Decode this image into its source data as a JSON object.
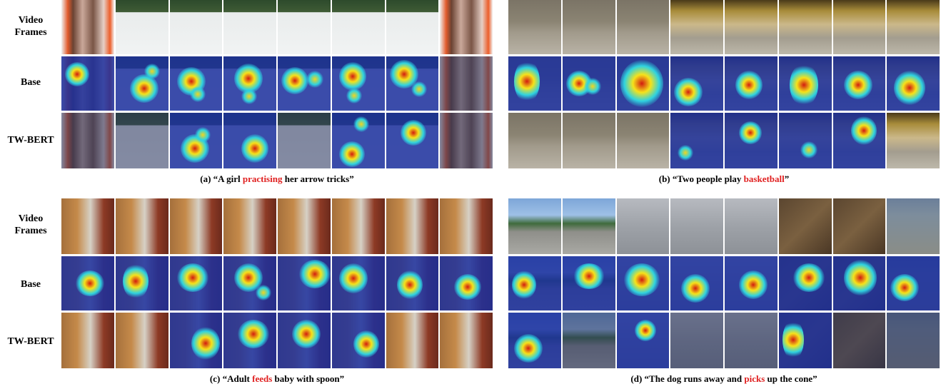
{
  "panels": [
    {
      "id": "a",
      "row_labels": [
        "Video\nFrames",
        "Base",
        "TW-BERT"
      ],
      "caption": {
        "prefix": "(a) “A girl ",
        "highlight": "practising",
        "suffix": " her arrow tricks”"
      }
    },
    {
      "id": "b",
      "row_labels": [
        "",
        "",
        ""
      ],
      "caption": {
        "prefix": "(b) “Two people play ",
        "highlight": "basketball",
        "suffix": "”"
      }
    },
    {
      "id": "c",
      "row_labels": [
        "Video\nFrames",
        "Base",
        "TW-BERT"
      ],
      "caption": {
        "prefix": "(c) “Adult ",
        "highlight": "feeds",
        "suffix": " baby with spoon”"
      }
    },
    {
      "id": "d",
      "row_labels": [
        "",
        "",
        ""
      ],
      "caption": {
        "prefix": "(d) “The dog runs away and ",
        "highlight": "picks",
        "suffix": " up the cone”"
      }
    }
  ],
  "colors": {
    "highlight": "#e02020",
    "heat_background": "#1b2f9e"
  }
}
